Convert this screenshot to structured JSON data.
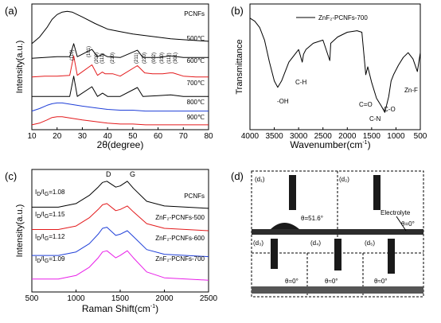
{
  "chart_data": [
    {
      "panel": "(a)",
      "type": "line",
      "xlabel": "2θ(degree)",
      "ylabel": "Intensity(a.u.)",
      "xlim": [
        10,
        80
      ],
      "xticks": [
        "10",
        "20",
        "30",
        "40",
        "50",
        "60",
        "70",
        "80"
      ],
      "series": [
        {
          "name": "PCNFs",
          "color": "#000000",
          "x": [
            10,
            13,
            16,
            18,
            20,
            22,
            24,
            26,
            28,
            30,
            35,
            40,
            45,
            50,
            55,
            60,
            65,
            70,
            75,
            80
          ],
          "y": [
            10.6,
            11.4,
            12.6,
            13.6,
            14.2,
            14.5,
            14.6,
            14.5,
            14.2,
            13.9,
            13.1,
            12.4,
            12.1,
            11.8,
            11.6,
            11.4,
            11.2,
            11.1,
            11.0,
            10.9
          ]
        },
        {
          "name": "500℃",
          "color": "#000000",
          "x": [
            10,
            15,
            20,
            25,
            26.6,
            28,
            33.8,
            36,
            38,
            40,
            45,
            51.8,
            54,
            60,
            65,
            70,
            80
          ],
          "y": [
            8.8,
            8.9,
            9.0,
            9.0,
            10.6,
            9.0,
            9.9,
            9.0,
            9.3,
            9.0,
            8.9,
            9.8,
            8.9,
            8.9,
            9.1,
            8.9,
            8.9
          ]
        },
        {
          "name": "600℃",
          "color": "#e31a1c",
          "x": [
            10,
            15,
            20,
            25,
            26.6,
            28,
            33.8,
            36,
            37.9,
            39,
            42,
            45,
            51.8,
            54.7,
            57.8,
            61.8,
            64.7,
            65.9,
            70,
            75,
            80
          ],
          "y": [
            6.5,
            6.6,
            6.6,
            6.7,
            9.1,
            6.7,
            8.0,
            6.7,
            7.1,
            6.9,
            6.9,
            6.6,
            7.9,
            7.0,
            6.9,
            6.9,
            7.0,
            7.0,
            6.6,
            6.5,
            6.5
          ]
        },
        {
          "name": "700℃",
          "color": "#000000",
          "x": [
            10,
            15,
            20,
            25,
            26.6,
            28,
            33.8,
            36,
            38,
            40,
            45,
            51.8,
            54,
            60,
            65,
            70,
            80
          ],
          "y": [
            4.1,
            4.1,
            4.1,
            4.1,
            6.6,
            4.1,
            5.3,
            4.1,
            4.5,
            4.1,
            4.1,
            5.2,
            4.1,
            4.2,
            4.3,
            4.1,
            4.1
          ]
        },
        {
          "name": "800℃",
          "color": "#1f3fd8",
          "x": [
            10,
            13,
            16,
            18,
            20,
            22,
            24,
            26,
            28,
            30,
            35,
            40,
            45,
            50,
            55,
            60,
            65,
            70,
            75,
            80
          ],
          "y": [
            2.3,
            2.6,
            3.0,
            3.2,
            3.3,
            3.3,
            3.2,
            3.1,
            3.0,
            2.9,
            2.7,
            2.5,
            2.4,
            2.4,
            2.3,
            2.3,
            2.3,
            2.3,
            2.3,
            2.3
          ]
        },
        {
          "name": "900℃",
          "color": "#e31a1c",
          "x": [
            10,
            13,
            16,
            18,
            20,
            22,
            24,
            26,
            28,
            30,
            35,
            40,
            45,
            50,
            55,
            60,
            65,
            70,
            75,
            80
          ],
          "y": [
            0.6,
            0.8,
            1.2,
            1.5,
            1.6,
            1.6,
            1.5,
            1.4,
            1.3,
            1.2,
            1.0,
            0.8,
            0.7,
            0.7,
            0.6,
            0.6,
            0.6,
            0.6,
            0.6,
            0.6
          ]
        }
      ],
      "peak_labels": [
        "(110)",
        "(101)",
        "(200)",
        "(111)",
        "(210)",
        "(211)",
        "(220)",
        "(002)",
        "(310)",
        "(112)",
        "(301)"
      ]
    },
    {
      "panel": "(b)",
      "type": "line",
      "xlabel": "Wavenumber(cm⁻¹)",
      "ylabel": "Transmittance",
      "xlim": [
        4000,
        500
      ],
      "xticks": [
        "4000",
        "3500",
        "3000",
        "2500",
        "2000",
        "1500",
        "1000",
        "500"
      ],
      "series": [
        {
          "name": "ZnF₂-PCNFs-700",
          "color": "#000000",
          "x": [
            4000,
            3900,
            3800,
            3700,
            3600,
            3500,
            3430,
            3350,
            3200,
            3000,
            2925,
            2900,
            2850,
            2700,
            2500,
            2360,
            2340,
            2200,
            2000,
            1800,
            1700,
            1620,
            1580,
            1500,
            1400,
            1300,
            1230,
            1150,
            1100,
            1050,
            950,
            850,
            750,
            650,
            560,
            500
          ],
          "y": [
            0.86,
            0.84,
            0.8,
            0.72,
            0.58,
            0.46,
            0.42,
            0.46,
            0.58,
            0.66,
            0.58,
            0.63,
            0.66,
            0.7,
            0.72,
            0.59,
            0.7,
            0.74,
            0.77,
            0.78,
            0.77,
            0.5,
            0.55,
            0.45,
            0.35,
            0.3,
            0.26,
            0.36,
            0.46,
            0.5,
            0.56,
            0.61,
            0.64,
            0.6,
            0.52,
            0.64
          ]
        }
      ],
      "annotations": [
        "-OH",
        "C-H",
        "C=O",
        "C-N",
        "C-O",
        "Zn-F"
      ]
    },
    {
      "panel": "(c)",
      "type": "line",
      "xlabel": "Raman Shift(cm⁻¹)",
      "ylabel": "Intensity(a.u.)",
      "xlim": [
        500,
        2500
      ],
      "xticks": [
        "500",
        "1000",
        "1500",
        "2000",
        "2500"
      ],
      "peak_labels": [
        "D",
        "G"
      ],
      "series": [
        {
          "name": "PCNFs",
          "color": "#000000",
          "ratio": "1.08",
          "x": [
            500,
            800,
            1000,
            1150,
            1250,
            1300,
            1350,
            1450,
            1500,
            1580,
            1650,
            1800,
            2000,
            2500
          ],
          "y": [
            3.1,
            3.1,
            3.25,
            3.6,
            3.95,
            4.15,
            4.2,
            3.95,
            4.0,
            4.2,
            3.9,
            3.35,
            3.15,
            3.05
          ]
        },
        {
          "name": "ZnF₂-PCNFs-500",
          "color": "#e31a1c",
          "ratio": "1.15",
          "x": [
            500,
            800,
            1000,
            1150,
            1250,
            1300,
            1350,
            1450,
            1500,
            1580,
            1650,
            1800,
            2000,
            2500
          ],
          "y": [
            2.15,
            2.15,
            2.3,
            2.65,
            3.0,
            3.2,
            3.25,
            2.95,
            3.0,
            3.15,
            2.9,
            2.4,
            2.2,
            2.1
          ]
        },
        {
          "name": "ZnF₂-PCNFs-600",
          "color": "#1f3fd8",
          "ratio": "1.12",
          "x": [
            500,
            800,
            1000,
            1150,
            1250,
            1300,
            1350,
            1450,
            1500,
            1580,
            1650,
            1800,
            2000,
            2500
          ],
          "y": [
            1.05,
            1.05,
            1.2,
            1.55,
            1.95,
            2.2,
            2.25,
            1.9,
            1.95,
            2.1,
            1.85,
            1.3,
            1.1,
            1.0
          ]
        },
        {
          "name": "ZnF₂-PCNFs-700",
          "color": "#e81ee8",
          "ratio": "1.09",
          "x": [
            500,
            800,
            1000,
            1150,
            1250,
            1300,
            1350,
            1450,
            1500,
            1580,
            1650,
            1800,
            2000,
            2500
          ],
          "y": [
            0.05,
            0.05,
            0.2,
            0.55,
            0.95,
            1.2,
            1.25,
            0.95,
            1.05,
            1.25,
            0.95,
            0.35,
            0.1,
            0.0
          ]
        }
      ]
    }
  ],
  "panels": {
    "a_label": "(a)",
    "b_label": "(b)",
    "c_label": "(c)",
    "d_label": "(d)",
    "a_ylabel": "Intensity(a.u.)",
    "a_xlabel": "2θ(degree)",
    "b_ylabel": "Transmittance",
    "b_xlabel": "Wavenumber(cm",
    "c_ylabel": "Intensity(a.u.)",
    "c_xlabel": "Raman Shift(cm",
    "b_legend": "ZnF₂-PCNFs-700",
    "a_labels": [
      "PCNFs",
      "500℃",
      "600℃",
      "700℃",
      "800℃",
      "900℃"
    ],
    "a_peaks": [
      "(110)",
      "(101)",
      "(200)",
      "(111)",
      "(210)",
      "(211)",
      "(220)",
      "(002)",
      "(310)",
      "(112)",
      "(301)"
    ],
    "b_ann": [
      "-OH",
      "C-H",
      "C=O",
      "C-N",
      "C-O",
      "Zn-F"
    ],
    "c_peaks": [
      "D",
      "G"
    ],
    "c_names": [
      "PCNFs",
      "ZnF₂-PCNFs-500",
      "ZnF₂-PCNFs-600",
      "ZnF₂-PCNFs-700"
    ],
    "c_ratio_prefix": "I",
    "c_ratios": [
      "=1.08",
      "=1.15",
      "=1.12",
      "=1.09"
    ],
    "unit_sup": "-1",
    "d_labels": [
      "(d₁)",
      "(d₂)",
      "(d₃)",
      "(d₄)",
      "(d₅)"
    ],
    "d_theta": [
      "θ=51.6°",
      "θ=0°",
      "θ=0°",
      "θ≈0°",
      "θ≈0°"
    ],
    "d_electrolyte": "Electrolyte"
  }
}
